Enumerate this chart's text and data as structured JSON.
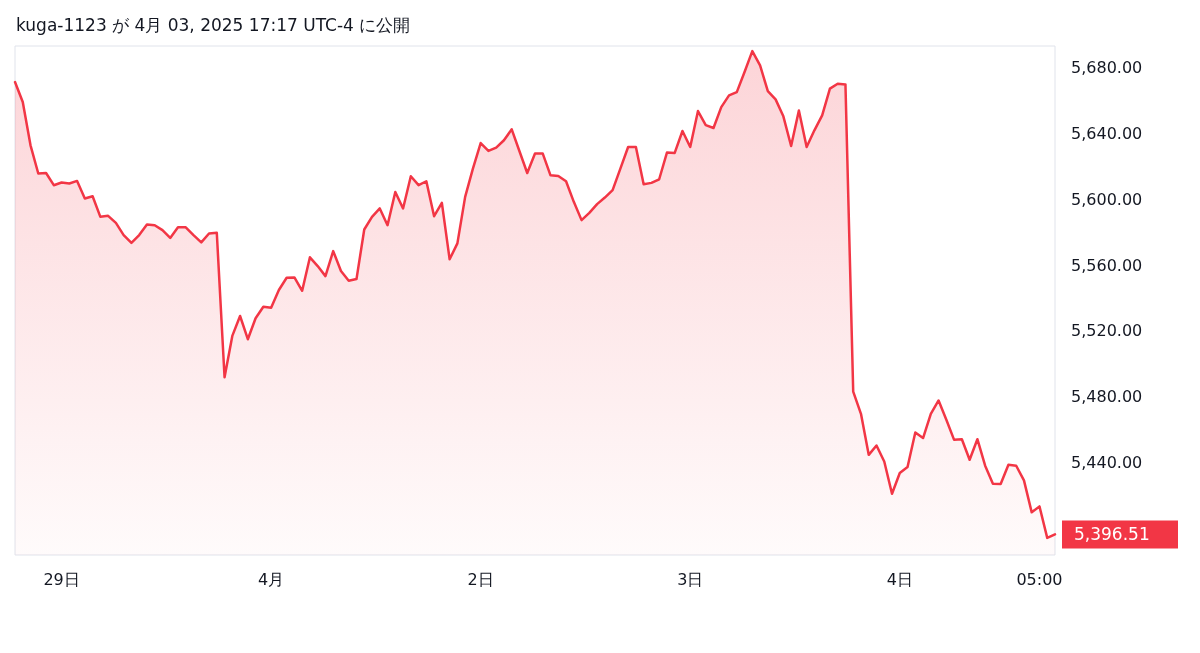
{
  "chart_data": {
    "type": "area",
    "title": "kuga-1123 が 4月 03, 2025 17:17 UTC-4 に公開",
    "categories": [
      null,
      null,
      null,
      null,
      null,
      null,
      "29日",
      null,
      null,
      null,
      null,
      null,
      null,
      null,
      null,
      null,
      null,
      null,
      null,
      null,
      null,
      null,
      null,
      null,
      null,
      null,
      null,
      null,
      null,
      null,
      null,
      null,
      null,
      "4月",
      null,
      null,
      null,
      null,
      null,
      null,
      null,
      null,
      null,
      null,
      null,
      null,
      null,
      null,
      null,
      null,
      null,
      null,
      null,
      null,
      null,
      null,
      null,
      null,
      null,
      null,
      "2日",
      null,
      null,
      null,
      null,
      null,
      null,
      null,
      null,
      null,
      null,
      null,
      null,
      null,
      null,
      null,
      null,
      null,
      null,
      null,
      null,
      null,
      null,
      null,
      null,
      null,
      null,
      "3日",
      null,
      null,
      null,
      null,
      null,
      null,
      null,
      null,
      null,
      null,
      null,
      null,
      null,
      null,
      null,
      null,
      null,
      null,
      null,
      null,
      null,
      null,
      null,
      null,
      null,
      null,
      "4日",
      null,
      null,
      null,
      null,
      null,
      null,
      null,
      null,
      null,
      null,
      null,
      null,
      null,
      null,
      null,
      null,
      null,
      "05:00",
      null,
      null
    ],
    "series": [
      {
        "color": "#f23645",
        "values": [
          5671.1,
          5659.0,
          5632.7,
          5615.6,
          5615.9,
          5608.5,
          5610.1,
          5609.5,
          5611.1,
          5600.4,
          5601.8,
          5589.3,
          5589.9,
          5585.6,
          5578.2,
          5573.5,
          5578.2,
          5584.7,
          5584.2,
          5581.2,
          5576.5,
          5582.9,
          5582.9,
          5578.2,
          5573.8,
          5579.2,
          5579.6,
          5491.9,
          5517.0,
          5529.1,
          5515.0,
          5527.7,
          5534.7,
          5534.1,
          5544.9,
          5552.3,
          5552.5,
          5544.4,
          5564.7,
          5559.4,
          5553.3,
          5568.5,
          5556.4,
          5550.5,
          5551.5,
          5581.6,
          5589.3,
          5594.4,
          5584.2,
          5604.4,
          5594.4,
          5613.9,
          5608.5,
          5610.9,
          5589.7,
          5597.8,
          5563.5,
          5573.2,
          5601.4,
          5618.6,
          5634.1,
          5629.3,
          5631.3,
          5635.8,
          5642.4,
          5629.1,
          5615.9,
          5627.7,
          5627.7,
          5614.5,
          5614.1,
          5610.9,
          5598.4,
          5587.3,
          5591.7,
          5597.0,
          5601.0,
          5605.5,
          5618.6,
          5631.7,
          5631.7,
          5609.1,
          5609.9,
          5612.1,
          5628.3,
          5628.1,
          5641.4,
          5631.7,
          5653.5,
          5645.0,
          5643.2,
          5655.9,
          5663.0,
          5665.0,
          5677.2,
          5689.9,
          5681.2,
          5665.6,
          5660.6,
          5650.3,
          5632.3,
          5653.9,
          5631.7,
          5641.8,
          5650.9,
          5667.1,
          5670.1,
          5669.7,
          5483.2,
          5469.7,
          5444.8,
          5450.5,
          5440.8,
          5421.2,
          5433.8,
          5437.4,
          5458.4,
          5455.0,
          5469.7,
          5477.8,
          5466.1,
          5453.9,
          5454.3,
          5441.8,
          5454.3,
          5438.2,
          5427.3,
          5427.1,
          5438.8,
          5438.2,
          5429.3,
          5409.9,
          5413.5,
          5394.4,
          5396.51
        ]
      }
    ],
    "ylim": [
      5384,
      5693
    ],
    "yticks": [
      {
        "value": 5440,
        "label": "5,440.00"
      },
      {
        "value": 5480,
        "label": "5,480.00"
      },
      {
        "value": 5520,
        "label": "5,520.00"
      },
      {
        "value": 5560,
        "label": "5,560.00"
      },
      {
        "value": 5600,
        "label": "5,600.00"
      },
      {
        "value": 5640,
        "label": "5,640.00"
      },
      {
        "value": 5680,
        "label": "5,680.00"
      }
    ],
    "annotations": [
      "5,396.51"
    ],
    "grid": false,
    "marker": "none",
    "line_style": "solid"
  }
}
